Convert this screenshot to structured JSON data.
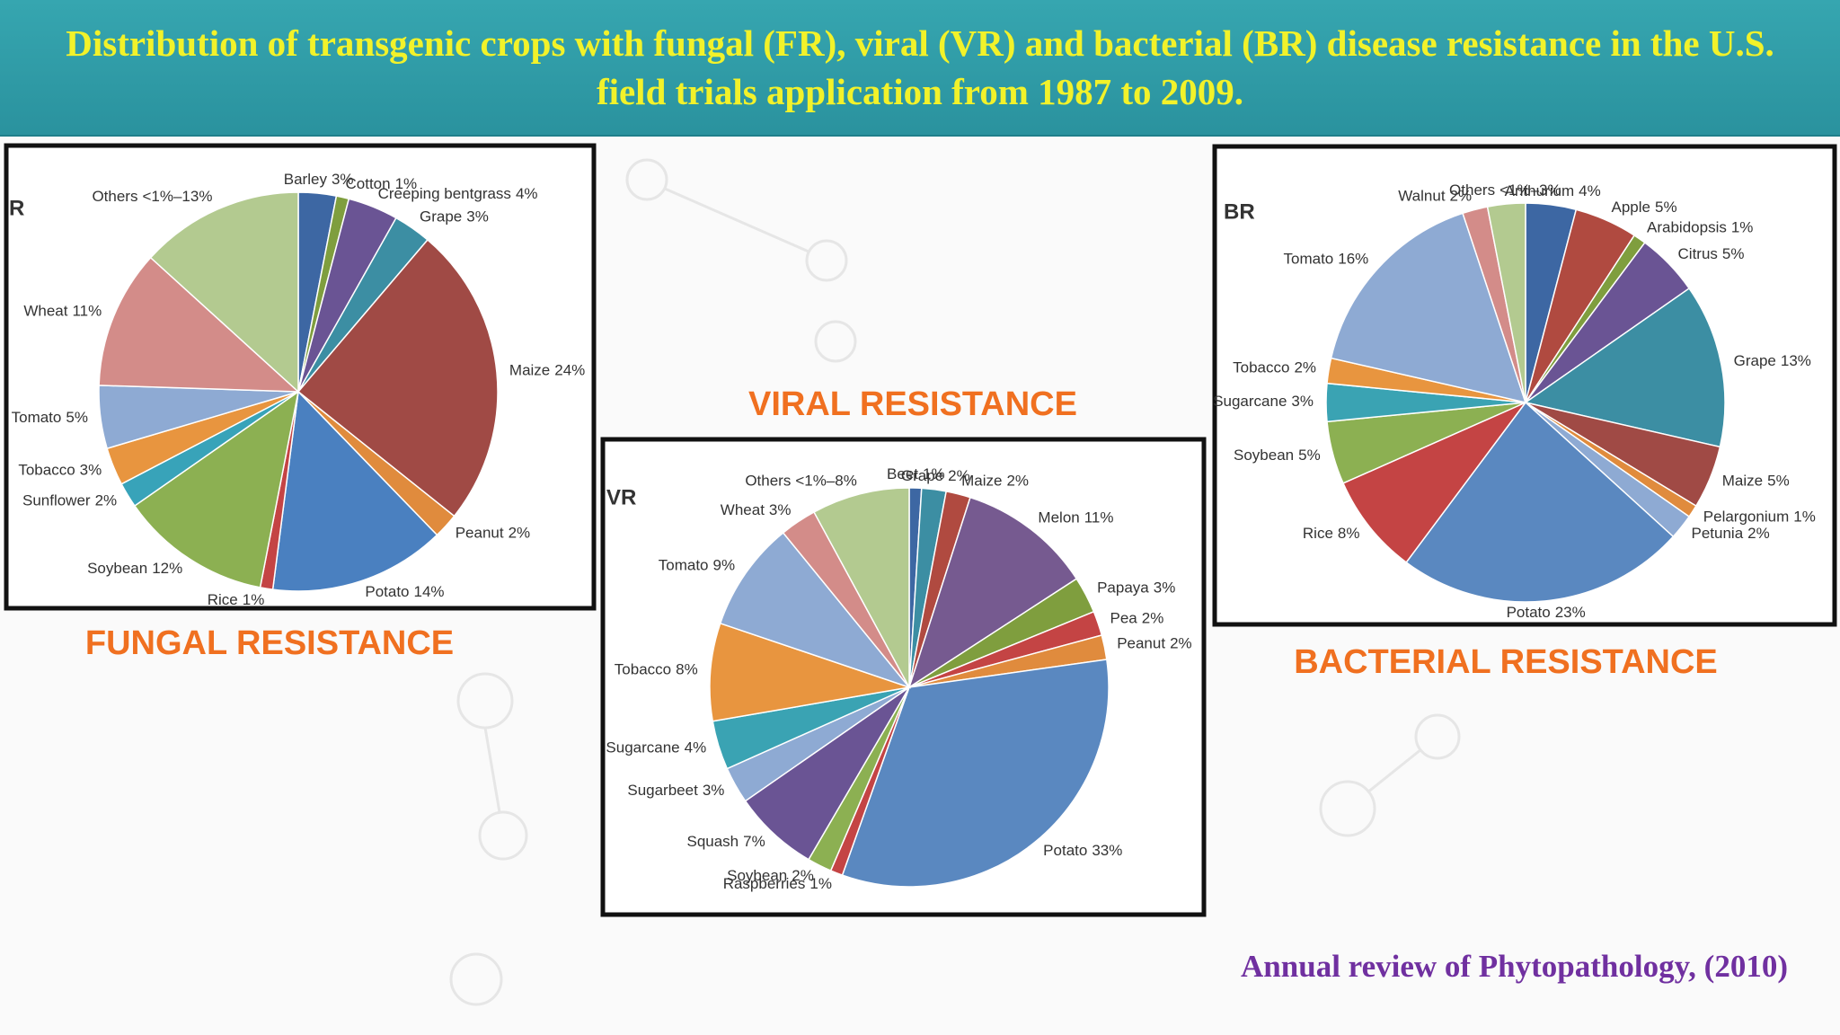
{
  "header": {
    "title": "Distribution of transgenic crops with fungal (FR), viral (VR) and bacterial (BR) disease resistance in the U.S. field trials application from 1987 to 2009."
  },
  "citation": "Annual review of Phytopathology, (2010)",
  "chart_data": [
    {
      "type": "pie",
      "title": "FUNGAL RESISTANCE",
      "panel_label": "R",
      "categories": [
        "Barley",
        "Cotton",
        "Creeping bentgrass",
        "Grape",
        "Maize",
        "Peanut",
        "Potato",
        "Rice",
        "Soybean",
        "Sunflower",
        "Tobacco",
        "Tomato",
        "Wheat",
        "Others"
      ],
      "values": [
        3,
        1,
        4,
        3,
        24,
        2,
        14,
        1,
        12,
        2,
        3,
        5,
        11,
        13
      ],
      "value_labels": [
        "3%",
        "1%",
        "4%",
        "3%",
        "24%",
        "2%",
        "14%",
        "1%",
        "12%",
        "2%",
        "3%",
        "5%",
        "11%",
        "<1%–13%"
      ],
      "colors": [
        "#3d67a3",
        "#7f9e3e",
        "#6a5494",
        "#3c8ea3",
        "#a04a45",
        "#e08b3d",
        "#4a80c0",
        "#c44444",
        "#8cb052",
        "#38a3b9",
        "#e8953f",
        "#8eaad3",
        "#d38c89",
        "#b3ca90"
      ]
    },
    {
      "type": "pie",
      "title": "VIRAL RESISTANCE",
      "panel_label": "VR",
      "categories": [
        "Beet",
        "Grape",
        "Maize",
        "Melon",
        "Papaya",
        "Pea",
        "Peanut",
        "Potato",
        "Raspberries",
        "Soybean",
        "Squash",
        "Sugarbeet",
        "Sugarcane",
        "Tobacco",
        "Tomato",
        "Wheat",
        "Others"
      ],
      "values": [
        1,
        2,
        2,
        11,
        3,
        2,
        2,
        33,
        1,
        2,
        7,
        3,
        4,
        8,
        9,
        3,
        8
      ],
      "value_labels": [
        "1%",
        "2%",
        "2%",
        "11%",
        "3%",
        "2%",
        "2%",
        "33%",
        "1%",
        "2%",
        "7%",
        "3%",
        "4%",
        "8%",
        "9%",
        "3%",
        "<1%–8%"
      ],
      "colors": [
        "#3d67a3",
        "#3c8ea3",
        "#b04a40",
        "#765a90",
        "#7f9e3e",
        "#c44444",
        "#e08b3d",
        "#5a88c0",
        "#c44444",
        "#8cb052",
        "#6a5494",
        "#8eaad3",
        "#3aa3b3",
        "#e8953f",
        "#8eaad3",
        "#d38c89",
        "#b3ca90"
      ]
    },
    {
      "type": "pie",
      "title": "BACTERIAL RESISTANCE",
      "panel_label": "BR",
      "categories": [
        "Anthurium",
        "Apple",
        "Arabidopsis",
        "Citrus",
        "Grape",
        "Maize",
        "Pelargonium",
        "Petunia",
        "Potato",
        "Rice",
        "Soybean",
        "Sugarcane",
        "Tobacco",
        "Tomato",
        "Walnut",
        "Others"
      ],
      "values": [
        4,
        5,
        1,
        5,
        13,
        5,
        1,
        2,
        23,
        8,
        5,
        3,
        2,
        16,
        2,
        3
      ],
      "value_labels": [
        "4%",
        "5%",
        "1%",
        "5%",
        "13%",
        "5%",
        "1%",
        "2%",
        "23%",
        "8%",
        "5%",
        "3%",
        "2%",
        "16%",
        "2%",
        "<1%–3%"
      ],
      "colors": [
        "#3d67a3",
        "#b04a40",
        "#7f9e3e",
        "#6a5494",
        "#3c8ea3",
        "#a04a45",
        "#e08b3d",
        "#8eaad3",
        "#5a88c0",
        "#c44444",
        "#8cb052",
        "#3aa3b3",
        "#e8953f",
        "#8eaad3",
        "#d38c89",
        "#b3ca90"
      ]
    }
  ]
}
